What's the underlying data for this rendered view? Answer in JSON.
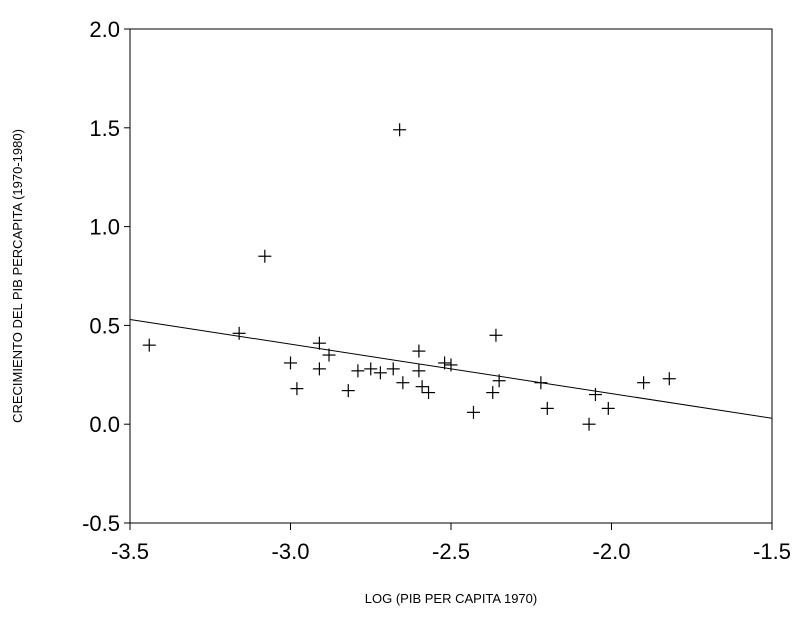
{
  "chart_data": {
    "type": "scatter",
    "title": "",
    "xlabel": "LOG (PIB PER CAPITA 1970)",
    "ylabel": "CRECIMIENTO DEL PIB PERCAPITA (1970-1980)",
    "xlim": [
      -3.5,
      -1.5
    ],
    "ylim": [
      -0.5,
      2.0
    ],
    "x_ticks": [
      "-3.5",
      "-3.0",
      "-2.5",
      "-2.0",
      "-1.5"
    ],
    "y_ticks": [
      "2.0",
      "1.5",
      "1.0",
      "0.5",
      "0.0",
      "-0.5"
    ],
    "grid": false,
    "marker": "plus",
    "series": [
      {
        "points": [
          {
            "x": -3.44,
            "y": 0.4
          },
          {
            "x": -3.16,
            "y": 0.46
          },
          {
            "x": -3.08,
            "y": 0.85
          },
          {
            "x": -3.0,
            "y": 0.31
          },
          {
            "x": -2.98,
            "y": 0.18
          },
          {
            "x": -2.91,
            "y": 0.41
          },
          {
            "x": -2.91,
            "y": 0.28
          },
          {
            "x": -2.88,
            "y": 0.35
          },
          {
            "x": -2.82,
            "y": 0.17
          },
          {
            "x": -2.79,
            "y": 0.27
          },
          {
            "x": -2.75,
            "y": 0.28
          },
          {
            "x": -2.72,
            "y": 0.26
          },
          {
            "x": -2.68,
            "y": 0.28
          },
          {
            "x": -2.66,
            "y": 1.49
          },
          {
            "x": -2.65,
            "y": 0.21
          },
          {
            "x": -2.6,
            "y": 0.37
          },
          {
            "x": -2.6,
            "y": 0.27
          },
          {
            "x": -2.59,
            "y": 0.19
          },
          {
            "x": -2.57,
            "y": 0.16
          },
          {
            "x": -2.52,
            "y": 0.31
          },
          {
            "x": -2.5,
            "y": 0.3
          },
          {
            "x": -2.43,
            "y": 0.06
          },
          {
            "x": -2.37,
            "y": 0.16
          },
          {
            "x": -2.36,
            "y": 0.45
          },
          {
            "x": -2.35,
            "y": 0.22
          },
          {
            "x": -2.22,
            "y": 0.21
          },
          {
            "x": -2.2,
            "y": 0.08
          },
          {
            "x": -2.07,
            "y": 0.0
          },
          {
            "x": -2.05,
            "y": 0.15
          },
          {
            "x": -2.01,
            "y": 0.08
          },
          {
            "x": -1.9,
            "y": 0.21
          },
          {
            "x": -1.82,
            "y": 0.23
          }
        ]
      }
    ],
    "fit_line": {
      "x": [
        -3.5,
        -1.5
      ],
      "y": [
        0.53,
        0.03
      ]
    }
  }
}
